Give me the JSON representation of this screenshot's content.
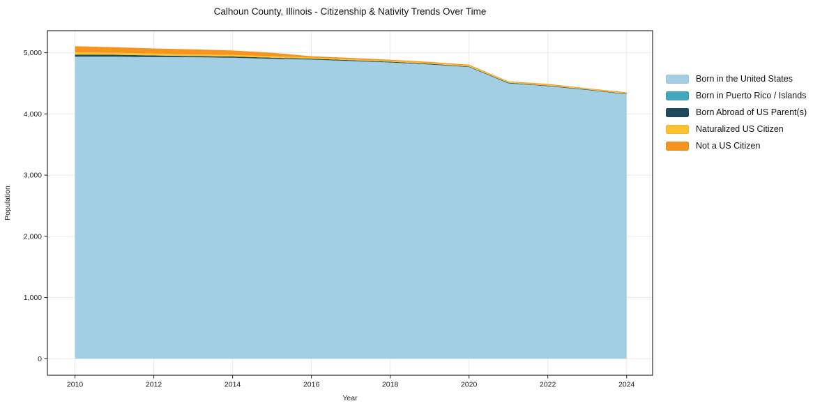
{
  "chart_data": {
    "type": "area",
    "stacked": true,
    "title": "Calhoun County, Illinois - Citizenship & Nativity Trends Over Time",
    "xlabel": "Year",
    "ylabel": "Population",
    "x": [
      2010,
      2011,
      2012,
      2013,
      2014,
      2015,
      2016,
      2017,
      2018,
      2019,
      2020,
      2021,
      2022,
      2023,
      2024
    ],
    "series": [
      {
        "name": "Born in the United States",
        "color": "#a3cfe5",
        "values": [
          4932,
          4933,
          4925,
          4924,
          4915,
          4898,
          4886,
          4862,
          4838,
          4806,
          4764,
          4498,
          4452,
          4390,
          4318
        ]
      },
      {
        "name": "Born in Puerto Rico / Islands",
        "color": "#42a6bc",
        "values": [
          4,
          4,
          4,
          3,
          3,
          3,
          3,
          3,
          3,
          3,
          2,
          2,
          2,
          2,
          2
        ]
      },
      {
        "name": "Born Abroad of US Parent(s)",
        "color": "#1f4a5e",
        "values": [
          34,
          30,
          26,
          19,
          20,
          18,
          14,
          13,
          12,
          11,
          9,
          9,
          8,
          8,
          8
        ]
      },
      {
        "name": "Naturalized US Citizen",
        "color": "#fdc230",
        "values": [
          38,
          34,
          30,
          26,
          26,
          24,
          17,
          16,
          15,
          14,
          17,
          13,
          13,
          12,
          12
        ]
      },
      {
        "name": "Not a US Citizen",
        "color": "#f7941f",
        "values": [
          98,
          90,
          85,
          83,
          73,
          57,
          23,
          21,
          17,
          16,
          13,
          10,
          15,
          8,
          12
        ]
      }
    ],
    "xticks": [
      2010,
      2012,
      2014,
      2016,
      2018,
      2020,
      2022,
      2024
    ],
    "yticks": [
      0,
      1000,
      2000,
      3000,
      4000,
      5000
    ],
    "ytick_labels": [
      "0",
      "1,000",
      "2,000",
      "3,000",
      "4,000",
      "5,000"
    ],
    "xlim": [
      2009.3,
      2024.66
    ],
    "ylim": [
      -270,
      5360
    ],
    "grid": true,
    "grid_color": "#e9e9e9",
    "axis_color": "#2b2b2b",
    "text_color": "#1f1f1f",
    "legend_position": "right"
  }
}
